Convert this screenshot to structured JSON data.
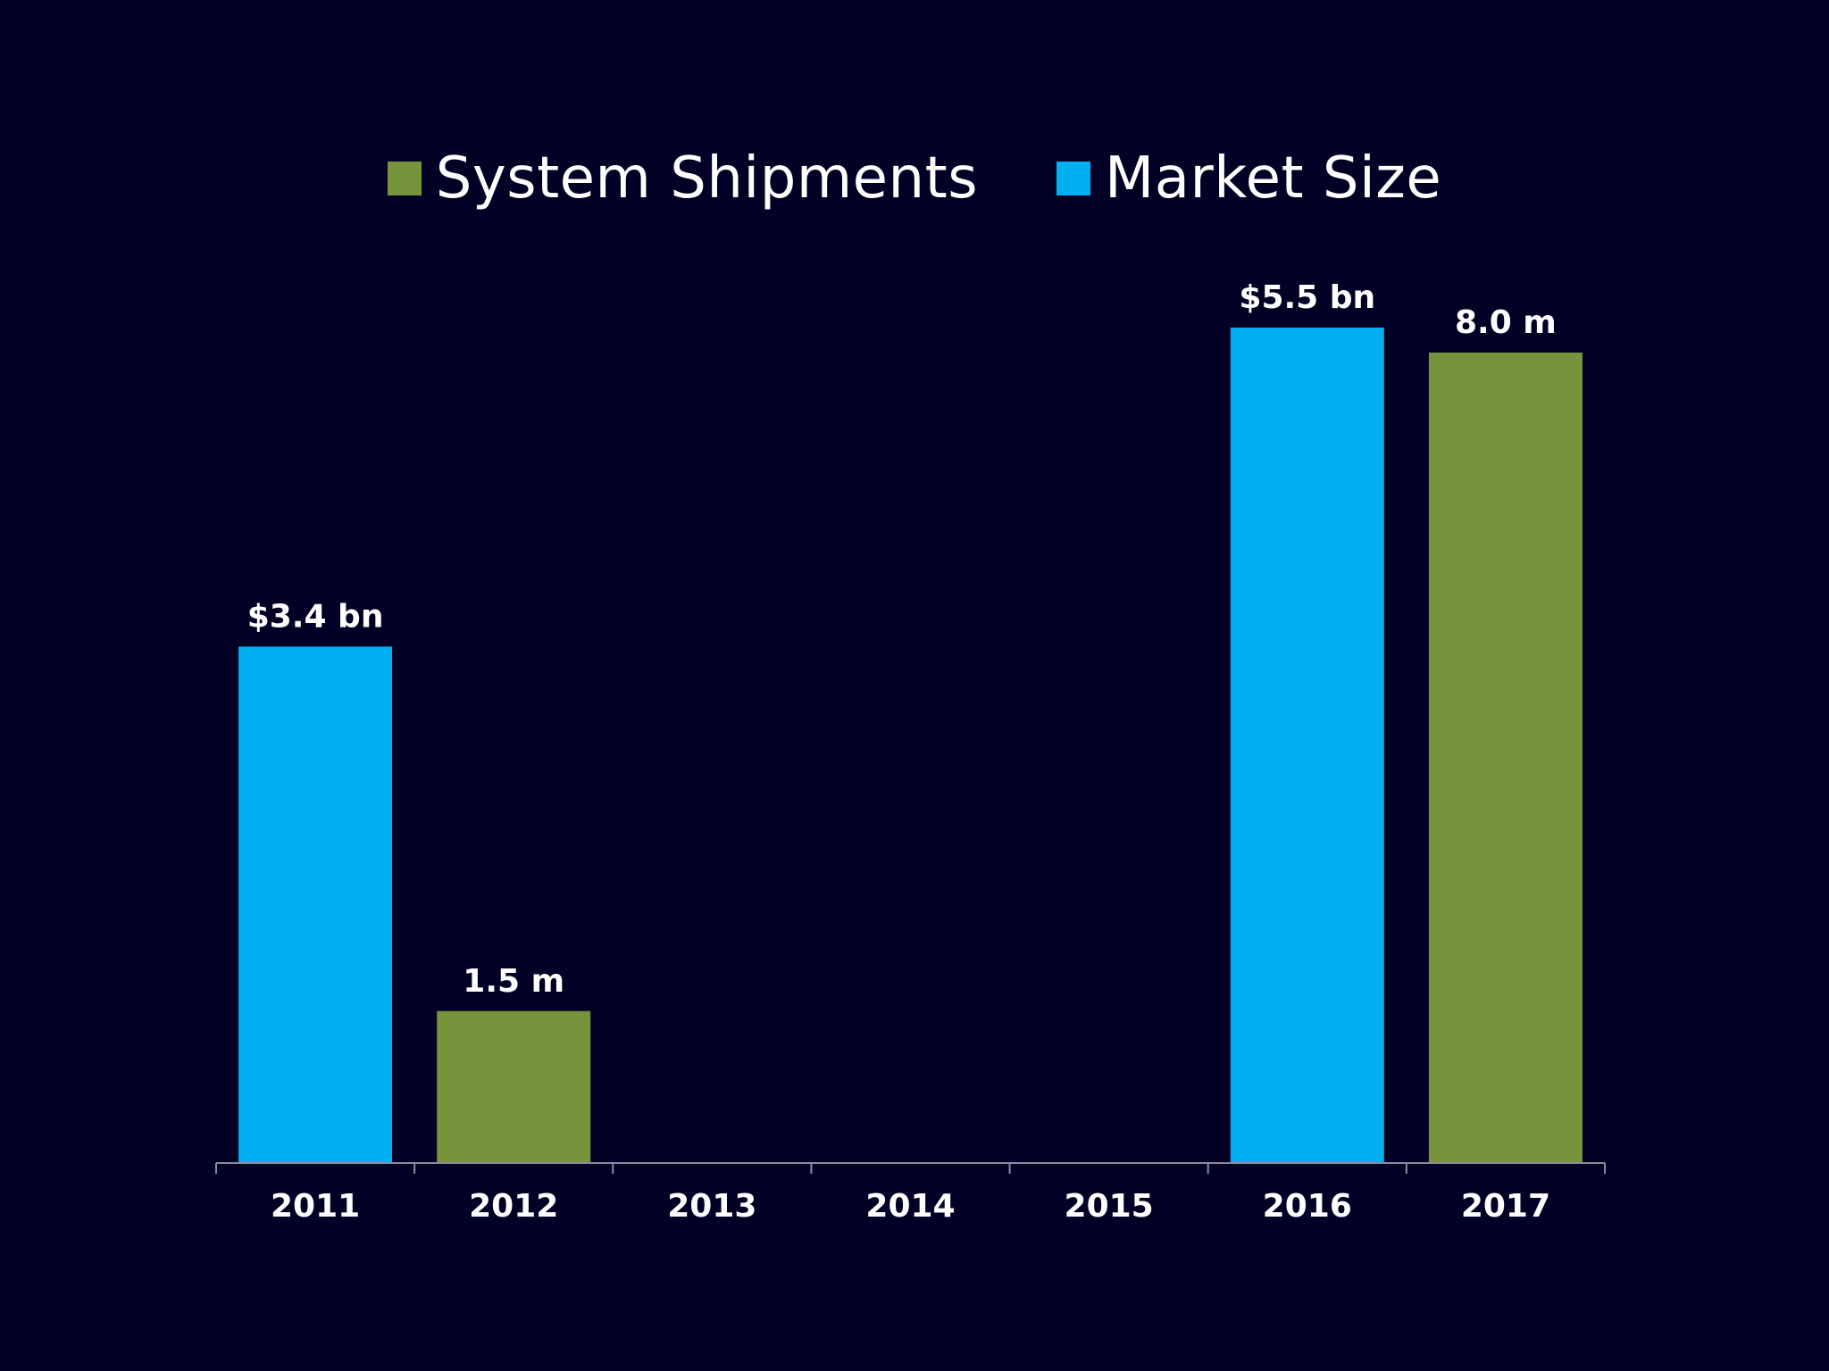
{
  "colors": {
    "background": "#020125",
    "market_size": "#00b0f0",
    "system_shipments": "#77933c",
    "axis": "#8c8c9c",
    "text": "#ffffff"
  },
  "legend": {
    "items": [
      {
        "label": "System Shipments",
        "color": "#77933c"
      },
      {
        "label": "Market Size",
        "color": "#00b0f0"
      }
    ],
    "position": "top-center"
  },
  "chart_data": {
    "type": "bar",
    "title": "",
    "xlabel": "",
    "ylabel": "",
    "grid": false,
    "categories": [
      "2011",
      "2012",
      "2013",
      "2014",
      "2015",
      "2016",
      "2017"
    ],
    "series": [
      {
        "name": "Market Size",
        "unit": "$ bn",
        "color": "#00b0f0",
        "values": [
          3.4,
          null,
          null,
          null,
          null,
          5.5,
          null
        ]
      },
      {
        "name": "System Shipments",
        "unit": "m",
        "color": "#77933c",
        "values": [
          null,
          1.5,
          null,
          null,
          null,
          null,
          8.0
        ]
      }
    ],
    "data_labels": [
      "$3.4 bn",
      "1.5 m",
      "",
      "",
      "",
      "$5.5 bn",
      "8.0 m"
    ]
  }
}
